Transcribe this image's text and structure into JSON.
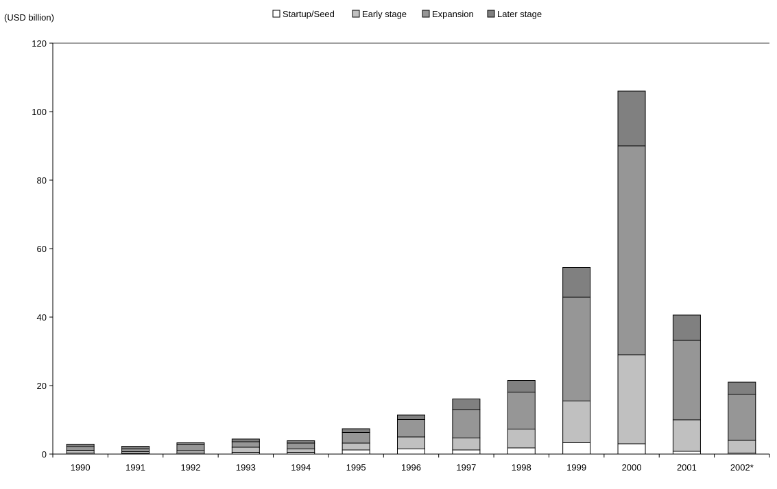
{
  "chart_data": {
    "type": "bar",
    "stacked": true,
    "unit_label": "(USD billion)",
    "categories": [
      "1990",
      "1991",
      "1992",
      "1993",
      "1994",
      "1995",
      "1996",
      "1997",
      "1998",
      "1999",
      "2000",
      "2001",
      "2002*"
    ],
    "series": [
      {
        "name": "Startup/Seed",
        "color": "#ffffff",
        "values": [
          0.3,
          0.2,
          0.3,
          0.5,
          0.5,
          1.2,
          1.5,
          1.2,
          1.8,
          3.3,
          3.0,
          0.8,
          0.3
        ]
      },
      {
        "name": "Early stage",
        "color": "#c0c0c0",
        "values": [
          0.8,
          0.5,
          0.7,
          1.5,
          1.0,
          2.0,
          3.5,
          3.5,
          5.5,
          12.2,
          26.0,
          9.2,
          3.7
        ]
      },
      {
        "name": "Expansion",
        "color": "#969696",
        "values": [
          1.1,
          0.8,
          1.7,
          1.6,
          1.7,
          3.1,
          5.1,
          8.3,
          10.8,
          30.3,
          61.0,
          23.2,
          13.5
        ]
      },
      {
        "name": "Later stage",
        "color": "#808080",
        "values": [
          0.7,
          0.8,
          0.6,
          0.8,
          0.7,
          1.1,
          1.3,
          3.1,
          3.4,
          8.7,
          16.0,
          7.4,
          3.5
        ]
      }
    ],
    "ylim": [
      0,
      120
    ],
    "yticks": [
      0,
      20,
      40,
      60,
      80,
      100,
      120
    ],
    "grid": false,
    "legend_position": "top-center"
  }
}
